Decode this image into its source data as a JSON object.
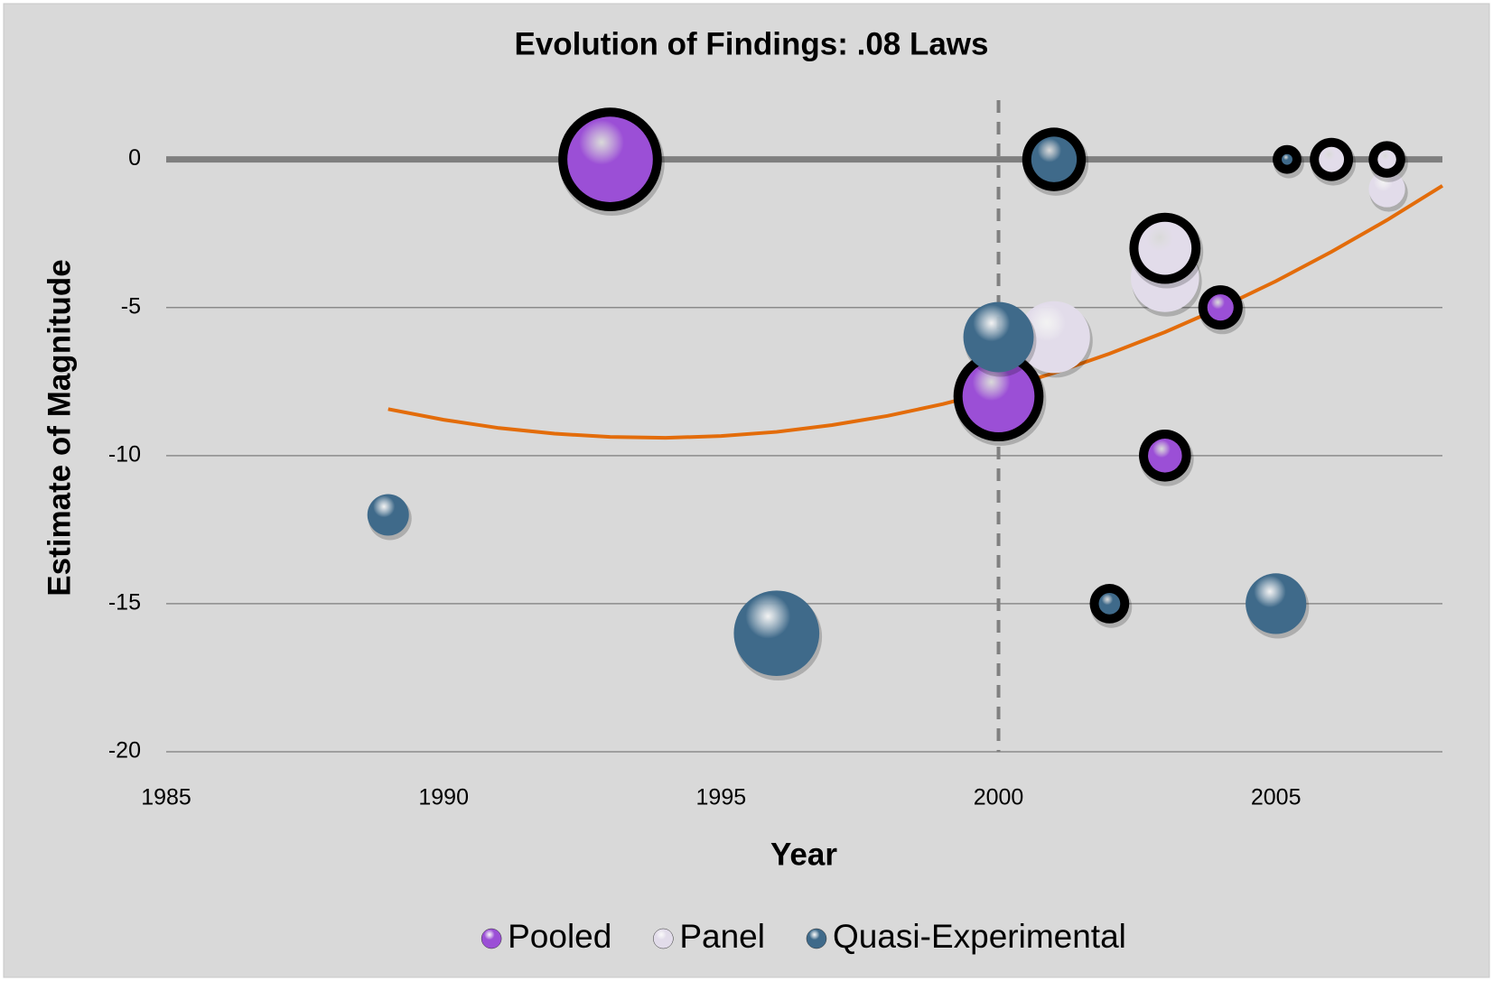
{
  "chart_data": {
    "type": "bubble",
    "title": "Evolution of Findings: .08 Laws",
    "x_label": "Year",
    "y_label": "Estimate of Magnitude",
    "xlim": [
      1985,
      2008
    ],
    "xticks": [
      1985,
      1990,
      1995,
      2000,
      2005
    ],
    "ylim": [
      -20,
      2
    ],
    "yticks": [
      -20,
      -15,
      -10,
      -5,
      0
    ],
    "grid": true,
    "legend": "bottom",
    "reference_lines": {
      "x": 2000,
      "y": 0
    },
    "series": [
      {
        "name": "Pooled",
        "color": "#9b4fd6",
        "x": [
          1993,
          2000,
          2004,
          2003
        ],
        "values": [
          0,
          -8,
          -5,
          -10
        ],
        "sizes": [
          127,
          90,
          12,
          20
        ],
        "outlined": [
          true,
          true,
          true,
          true
        ]
      },
      {
        "name": "Panel",
        "color": "#e2dcea",
        "x": [
          2001,
          2003,
          2003,
          2006,
          2007,
          2007
        ],
        "values": [
          -6,
          -3,
          -4,
          0,
          0,
          -1
        ],
        "sizes": [
          90,
          49,
          81,
          11,
          6,
          23
        ],
        "outlined": [
          false,
          true,
          false,
          true,
          true,
          false
        ]
      },
      {
        "name": "Quasi-Experimental",
        "color": "#3f6a8a",
        "x": [
          1989,
          1996,
          2000,
          2001,
          2002,
          2005,
          2005.2
        ],
        "values": [
          -12,
          -16,
          -6,
          0,
          -15,
          -15,
          0
        ],
        "sizes": [
          30,
          127,
          86,
          36,
          8,
          64,
          2
        ],
        "outlined": [
          false,
          false,
          false,
          true,
          true,
          false,
          true
        ]
      }
    ],
    "trendline": {
      "color": "#e36c0a",
      "x": [
        1989,
        1990,
        1991,
        1992,
        1993,
        1994,
        1995,
        1996,
        1997,
        1998,
        1999,
        2000,
        2001,
        2002,
        2003,
        2004,
        2005,
        2006,
        2007,
        2008
      ],
      "values": [
        -8.43,
        -8.79,
        -9.07,
        -9.26,
        -9.37,
        -9.4,
        -9.34,
        -9.2,
        -8.97,
        -8.66,
        -8.26,
        -7.78,
        -7.21,
        -6.56,
        -5.83,
        -5.01,
        -4.11,
        -3.12,
        -2.05,
        -0.89
      ]
    }
  }
}
